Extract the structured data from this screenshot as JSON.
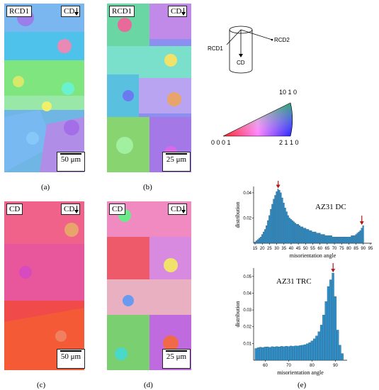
{
  "panels": {
    "a": {
      "label": "(a)",
      "corner_left": "RCD1",
      "corner_right": "CD",
      "scale": "50 μm"
    },
    "b": {
      "label": "(b)",
      "corner_left": "RCD1",
      "corner_right": "CD",
      "scale": "25 μm"
    },
    "c": {
      "label": "(c)",
      "corner_left": "CD",
      "corner_right": "CD",
      "scale": "50 μm"
    },
    "d": {
      "label": "(d)",
      "corner_left": "CD",
      "corner_right": "CD",
      "scale": "25 μm"
    },
    "e": {
      "label": "(e)"
    }
  },
  "schematic": {
    "rcd1": "RCD1",
    "rcd2": "RCD2",
    "cd": "CD"
  },
  "ipf_key": {
    "top": "10 1 0",
    "left": "0 0 0 1",
    "right": "2 1 1 0"
  },
  "chart_data": [
    {
      "type": "bar",
      "title": "AZ31 DC",
      "xlabel": "misorientation angle",
      "ylabel": "distribution",
      "xticks": [
        15,
        20,
        25,
        30,
        35,
        40,
        45,
        50,
        55,
        60,
        65,
        70,
        75,
        80,
        85,
        90,
        95
      ],
      "yticks": [
        0.02,
        0.04
      ],
      "ylim": [
        0,
        0.045
      ],
      "xlim": [
        14,
        96
      ],
      "annotations": [
        "arrow at 31",
        "arrow at 89"
      ],
      "x": [
        15,
        16,
        17,
        18,
        19,
        20,
        21,
        22,
        23,
        24,
        25,
        26,
        27,
        28,
        29,
        30,
        31,
        32,
        33,
        34,
        35,
        36,
        37,
        38,
        39,
        40,
        41,
        42,
        43,
        44,
        45,
        46,
        47,
        48,
        49,
        50,
        51,
        52,
        53,
        54,
        55,
        56,
        57,
        58,
        59,
        60,
        61,
        62,
        63,
        64,
        65,
        66,
        67,
        68,
        69,
        70,
        71,
        72,
        73,
        74,
        75,
        76,
        77,
        78,
        79,
        80,
        81,
        82,
        83,
        84,
        85,
        86,
        87,
        88,
        89,
        90
      ],
      "values": [
        0.001,
        0.002,
        0.003,
        0.004,
        0.005,
        0.007,
        0.009,
        0.011,
        0.014,
        0.018,
        0.022,
        0.027,
        0.031,
        0.035,
        0.038,
        0.041,
        0.043,
        0.042,
        0.04,
        0.036,
        0.032,
        0.028,
        0.025,
        0.022,
        0.02,
        0.019,
        0.018,
        0.017,
        0.016,
        0.015,
        0.015,
        0.014,
        0.013,
        0.013,
        0.012,
        0.012,
        0.011,
        0.011,
        0.01,
        0.01,
        0.009,
        0.009,
        0.009,
        0.008,
        0.008,
        0.008,
        0.007,
        0.007,
        0.007,
        0.006,
        0.006,
        0.006,
        0.006,
        0.006,
        0.005,
        0.005,
        0.005,
        0.005,
        0.005,
        0.005,
        0.005,
        0.005,
        0.005,
        0.005,
        0.005,
        0.005,
        0.005,
        0.006,
        0.006,
        0.006,
        0.007,
        0.008,
        0.009,
        0.01,
        0.012,
        0.014
      ]
    },
    {
      "type": "bar",
      "title": "AZ31 TRC",
      "xlabel": "misorientation angle",
      "ylabel": "distribution",
      "xticks": [
        60,
        70,
        80,
        90
      ],
      "yticks": [
        0.01,
        0.02,
        0.03,
        0.04,
        0.05
      ],
      "ylim": [
        0,
        0.055
      ],
      "xlim": [
        55,
        95
      ],
      "annotations": [
        "arrow at 89"
      ],
      "x": [
        56,
        57,
        58,
        59,
        60,
        61,
        62,
        63,
        64,
        65,
        66,
        67,
        68,
        69,
        70,
        71,
        72,
        73,
        74,
        75,
        76,
        77,
        78,
        79,
        80,
        81,
        82,
        83,
        84,
        85,
        86,
        87,
        88,
        89,
        90,
        91,
        92,
        93
      ],
      "values": [
        0.007,
        0.0075,
        0.0078,
        0.0076,
        0.0079,
        0.008,
        0.0077,
        0.0081,
        0.0079,
        0.0082,
        0.008,
        0.0083,
        0.0081,
        0.0084,
        0.0082,
        0.0085,
        0.0083,
        0.0086,
        0.0085,
        0.0088,
        0.009,
        0.0093,
        0.0098,
        0.0105,
        0.0115,
        0.0128,
        0.0145,
        0.017,
        0.021,
        0.027,
        0.035,
        0.044,
        0.048,
        0.052,
        0.038,
        0.018,
        0.009,
        0.004
      ]
    }
  ],
  "colors": {
    "bar": "#2f8fc8",
    "bar_edge": "#1a4d73",
    "arrow": "#b01818"
  }
}
